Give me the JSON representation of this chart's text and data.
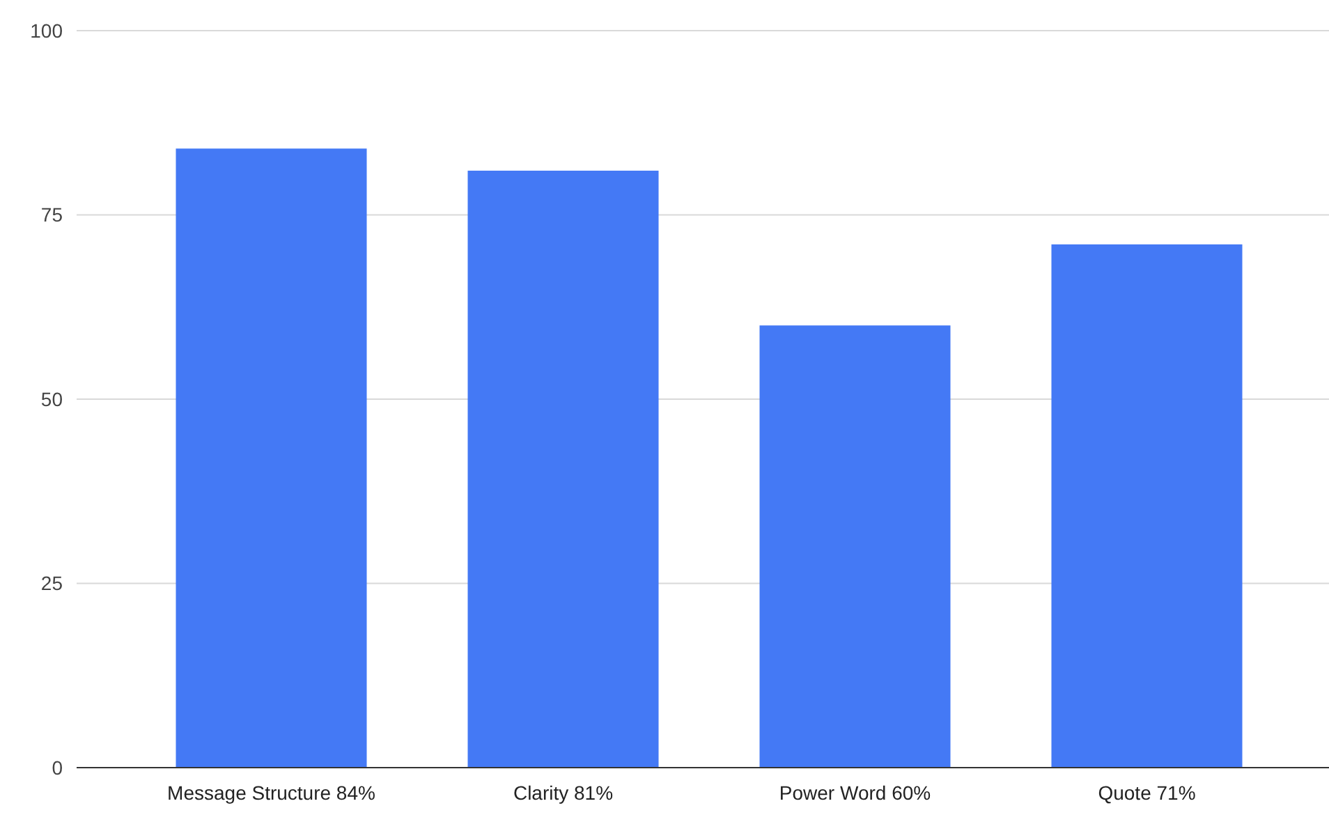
{
  "chart_data": {
    "type": "bar",
    "categories": [
      "Message Structure 84%",
      "Clarity 81%",
      "Power Word 60%",
      "Quote 71%"
    ],
    "values": [
      84,
      81,
      60,
      71
    ],
    "color": "#4479f5",
    "ylim": [
      0,
      100
    ],
    "yticks": [
      0,
      25,
      50,
      75,
      100
    ],
    "grid": "y"
  }
}
